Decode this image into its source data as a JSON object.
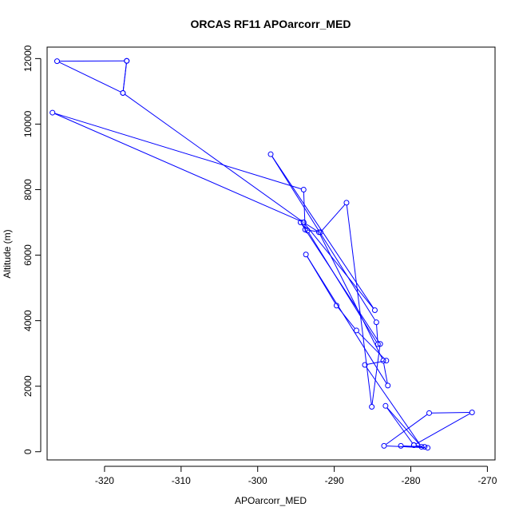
{
  "chart_data": {
    "type": "line",
    "title": "ORCAS RF11 APOarcorr_MED",
    "xlabel": "APOarcorr_MED",
    "ylabel": "Altitude (m)",
    "xlim": [
      -327.5,
      -269
    ],
    "ylim": [
      -250,
      12350
    ],
    "x_ticks": [
      -320,
      -310,
      -300,
      -290,
      -280,
      -270
    ],
    "y_ticks": [
      0,
      2000,
      4000,
      6000,
      8000,
      10000,
      12000
    ],
    "line_color": "#0000ff",
    "markers": "open-circle",
    "grid": false,
    "series": [
      {
        "x": [
          -317.1,
          -326.2,
          -317.6,
          -317.1,
          -317.6,
          -294.0,
          -284.7,
          -298.3,
          -284.5,
          -284.3,
          -293.5,
          -294.4,
          -284.0,
          -285.1,
          -288.4,
          -291.8,
          -293.8,
          -294.0,
          -326.8,
          -294.0,
          -292.0,
          -283.6,
          -283.0,
          -293.7,
          -289.7,
          -287.1,
          -283.2,
          -286.0,
          -278.6,
          -283.3,
          -279.6,
          -278.2,
          -281.3,
          -277.8,
          -283.5,
          -277.6,
          -272.0,
          -279.6
        ],
        "y": [
          11930,
          11920,
          10950,
          11930,
          10950,
          7000,
          4320,
          9080,
          3950,
          3280,
          6750,
          7000,
          3290,
          1370,
          7600,
          6700,
          6780,
          8000,
          10350,
          7000,
          6700,
          2780,
          2020,
          6020,
          4460,
          3700,
          2780,
          2650,
          150,
          1400,
          200,
          150,
          180,
          120,
          180,
          1180,
          1200,
          200
        ]
      }
    ]
  }
}
